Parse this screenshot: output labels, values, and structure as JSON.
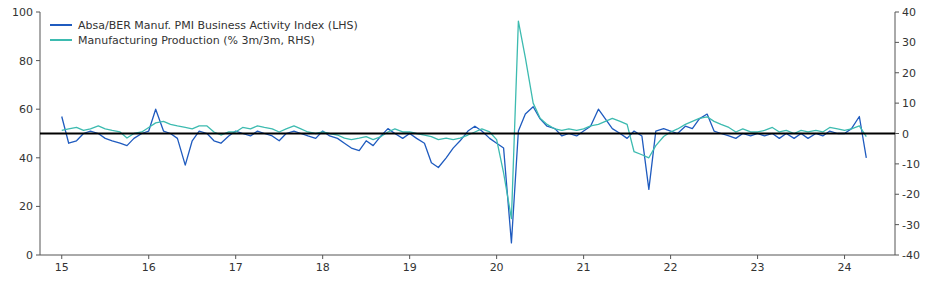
{
  "chart_data": {
    "type": "line",
    "x": [
      15,
      15.08,
      15.17,
      15.25,
      15.33,
      15.42,
      15.5,
      15.58,
      15.67,
      15.75,
      15.83,
      15.92,
      16,
      16.08,
      16.17,
      16.25,
      16.33,
      16.42,
      16.5,
      16.58,
      16.67,
      16.75,
      16.83,
      16.92,
      17,
      17.08,
      17.17,
      17.25,
      17.33,
      17.42,
      17.5,
      17.58,
      17.67,
      17.75,
      17.83,
      17.92,
      18,
      18.08,
      18.17,
      18.25,
      18.33,
      18.42,
      18.5,
      18.58,
      18.67,
      18.75,
      18.83,
      18.92,
      19,
      19.08,
      19.17,
      19.25,
      19.33,
      19.42,
      19.5,
      19.58,
      19.67,
      19.75,
      19.83,
      19.92,
      20,
      20.08,
      20.17,
      20.25,
      20.33,
      20.42,
      20.5,
      20.58,
      20.67,
      20.75,
      20.83,
      20.92,
      21,
      21.08,
      21.17,
      21.25,
      21.33,
      21.42,
      21.5,
      21.58,
      21.67,
      21.75,
      21.83,
      21.92,
      22,
      22.08,
      22.17,
      22.25,
      22.33,
      22.42,
      22.5,
      22.58,
      22.67,
      22.75,
      22.83,
      22.92,
      23,
      23.08,
      23.17,
      23.25,
      23.33,
      23.42,
      23.5,
      23.58,
      23.67,
      23.75,
      23.83,
      23.92,
      24,
      24.08,
      24.17,
      24.25
    ],
    "series": [
      {
        "name": "Absa/BER Manuf. PMI Business Activity Index (LHS)",
        "color": "#1f5bbf",
        "axis": "y",
        "values": [
          57,
          46,
          47,
          50,
          51,
          50,
          48,
          47,
          46,
          45,
          48,
          50,
          51,
          60,
          51,
          50,
          48,
          37,
          47,
          51,
          50,
          47,
          46,
          49,
          51,
          50,
          49,
          51,
          50,
          49,
          47,
          50,
          51,
          50,
          49,
          48,
          51,
          49,
          48,
          46,
          44,
          43,
          47,
          45,
          49,
          52,
          50,
          48,
          50,
          48,
          46,
          38,
          36,
          40,
          44,
          47,
          51,
          53,
          51,
          48,
          46,
          44,
          5,
          51,
          58,
          61,
          56,
          53,
          52,
          49,
          50,
          49,
          51,
          53,
          60,
          56,
          52,
          50,
          48,
          51,
          49,
          27,
          51,
          52,
          51,
          50,
          53,
          52,
          56,
          58,
          51,
          50,
          49,
          48,
          50,
          49,
          50,
          49,
          50,
          48,
          50,
          48,
          50,
          48,
          50,
          49,
          51,
          50,
          50,
          52,
          57,
          40
        ]
      },
      {
        "name": "Manufacturing Production (% 3m/3m, RHS)",
        "color": "#3dbbb0",
        "axis": "y2",
        "values": [
          1.0,
          1.5,
          2.0,
          1.0,
          1.5,
          2.5,
          1.5,
          1.0,
          0.5,
          -1.5,
          0.0,
          0.5,
          2.0,
          3.5,
          4.0,
          3.0,
          2.5,
          2.0,
          1.5,
          2.5,
          2.5,
          0.5,
          -0.5,
          0.5,
          0.5,
          2.0,
          1.5,
          2.5,
          2.0,
          1.5,
          0.5,
          1.5,
          2.5,
          1.5,
          0.5,
          0.0,
          0.5,
          0.0,
          -0.5,
          -1.5,
          -2.0,
          -1.5,
          -1.0,
          -2.0,
          -1.0,
          0.5,
          1.5,
          0.5,
          0.5,
          0.0,
          -0.5,
          -1.0,
          -2.0,
          -1.5,
          -2.0,
          -1.5,
          -0.5,
          0.5,
          1.5,
          0.5,
          -2.0,
          -13.0,
          -28.0,
          37.0,
          25.0,
          10.0,
          5.0,
          3.0,
          1.5,
          1.0,
          1.5,
          1.0,
          1.5,
          2.5,
          3.0,
          4.0,
          5.0,
          4.0,
          3.0,
          -6.0,
          -7.0,
          -8.0,
          -4.0,
          -1.0,
          0.5,
          1.5,
          3.0,
          4.0,
          5.0,
          5.5,
          4.0,
          3.0,
          2.0,
          0.5,
          1.5,
          0.5,
          0.5,
          1.0,
          2.0,
          0.5,
          1.0,
          0.0,
          1.0,
          0.5,
          1.0,
          0.5,
          2.0,
          1.5,
          1.0,
          1.5,
          2.5,
          -1.0
        ]
      }
    ],
    "xlim": [
      14.75,
      24.58
    ],
    "xticks": [
      15,
      16,
      17,
      18,
      19,
      20,
      21,
      22,
      23,
      24
    ],
    "ylim": [
      0,
      100
    ],
    "yticks": [
      0,
      20,
      40,
      60,
      80,
      100
    ],
    "y2lim": [
      -40,
      40
    ],
    "y2ticks": [
      -40,
      -30,
      -20,
      -10,
      0,
      10,
      20,
      30,
      40
    ],
    "reference_lines": [
      {
        "y": 50,
        "color": "#000000"
      }
    ],
    "grid": false,
    "legend": "upper left"
  }
}
